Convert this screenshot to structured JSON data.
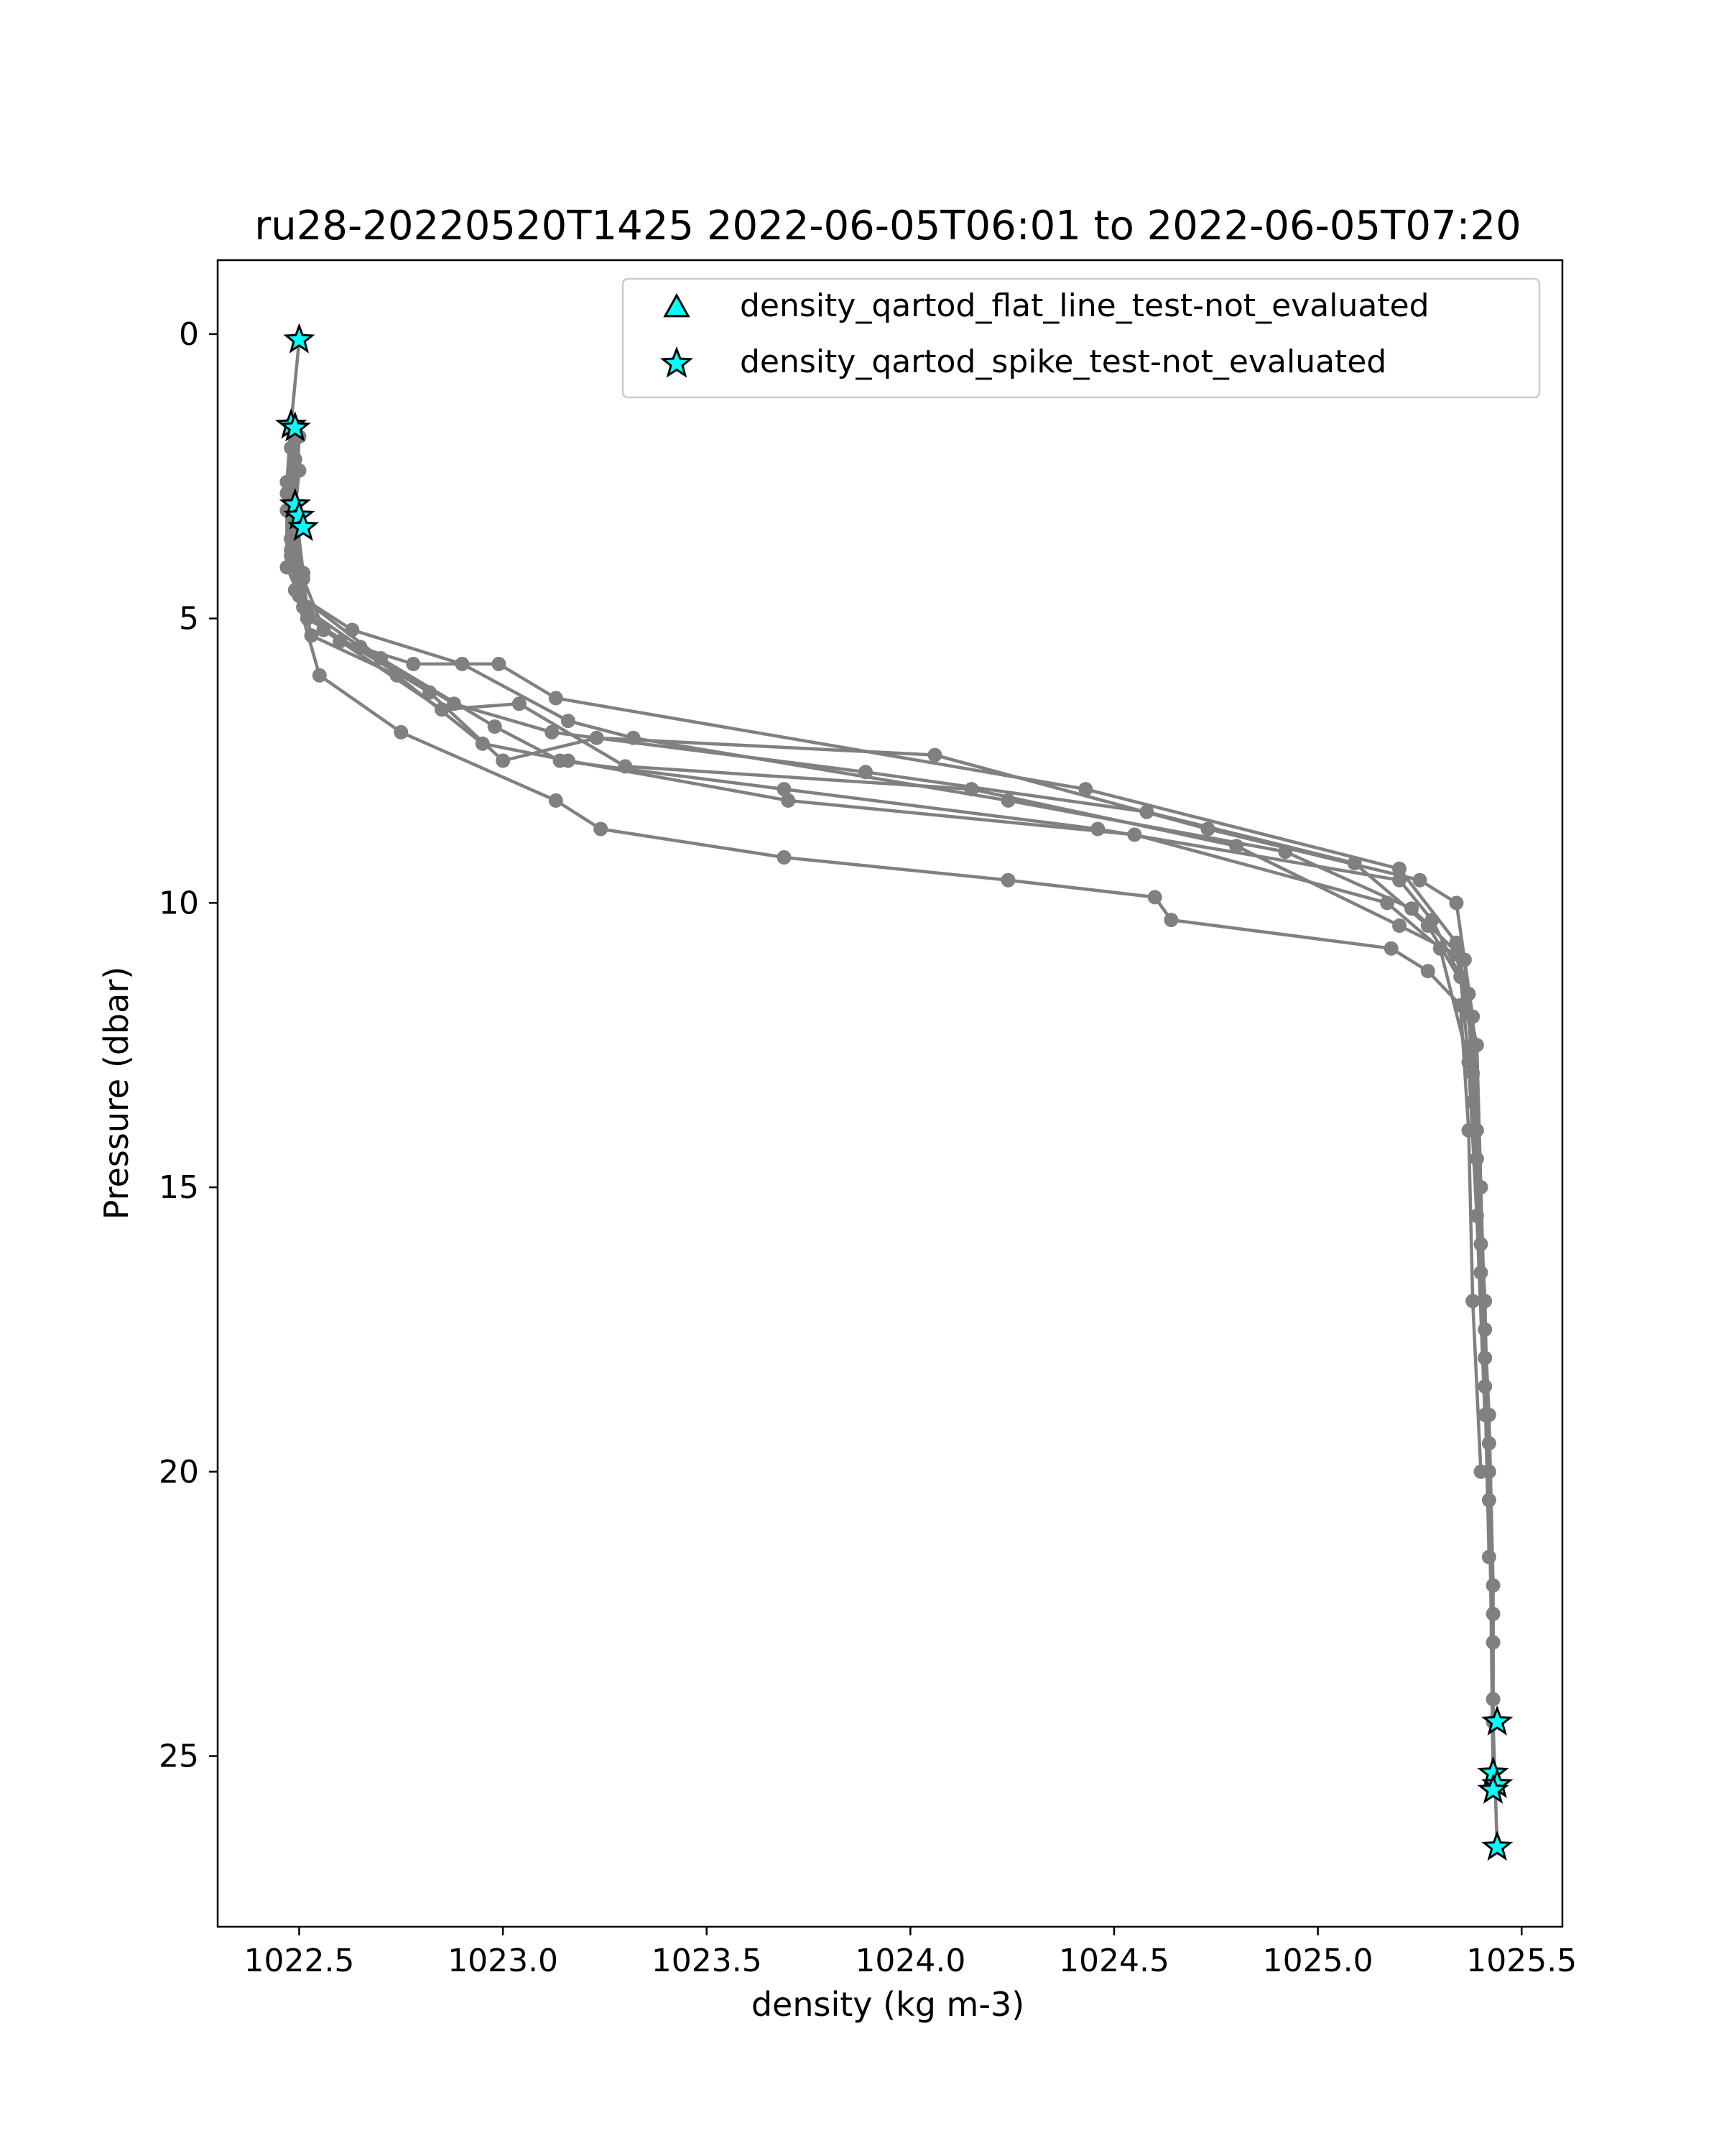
{
  "chart_data": {
    "type": "line",
    "title": "ru28-20220520T1425 2022-06-05T06:01 to 2022-06-05T07:20",
    "xlabel": "density (kg m-3)",
    "ylabel": "Pressure (dbar)",
    "xlim": [
      1022.3,
      1025.6
    ],
    "ylim": [
      28,
      -1.3
    ],
    "y_inverted": true,
    "grid": false,
    "legend_position": "top-right",
    "x_ticks": [
      1022.5,
      1023.0,
      1023.5,
      1024.0,
      1024.5,
      1025.0,
      1025.5
    ],
    "x_tick_labels": [
      "1022.5",
      "1023.0",
      "1023.5",
      "1024.0",
      "1024.5",
      "1025.0",
      "1025.5"
    ],
    "y_ticks": [
      0,
      5,
      10,
      15,
      20,
      25
    ],
    "y_tick_labels": [
      "0",
      "5",
      "10",
      "15",
      "20",
      "25"
    ],
    "line_color": "#808080",
    "marker_color": "#808080",
    "series": [
      {
        "x": [
          1022.5,
          1022.48,
          1022.49,
          1022.51,
          1022.52,
          1022.6,
          1022.78,
          1022.99,
          1023.13,
          1024.43,
          1025.2,
          1025.34,
          1025.39,
          1025.4,
          1025.41,
          1025.42,
          1025.43,
          1025.43,
          1025.44
        ],
        "y": [
          0.1,
          1.6,
          3.0,
          4.2,
          4.9,
          5.4,
          5.8,
          5.8,
          6.4,
          8.0,
          9.4,
          10.7,
          12.5,
          15.0,
          17.5,
          20.0,
          22.5,
          24.4,
          26.6
        ]
      },
      {
        "x": [
          1022.48,
          1022.47,
          1022.48,
          1022.5,
          1022.63,
          1022.9,
          1023.16,
          1023.32,
          1024.24,
          1024.92,
          1025.23,
          1025.36,
          1025.38,
          1025.4,
          1025.42,
          1025.43,
          1025.43
        ],
        "y": [
          1.6,
          2.6,
          3.6,
          4.6,
          5.2,
          5.8,
          6.8,
          7.1,
          8.2,
          9.1,
          10.1,
          11.0,
          13.0,
          16.0,
          19.0,
          22.0,
          25.3
        ]
      },
      {
        "x": [
          1022.49,
          1022.47,
          1022.48,
          1022.51,
          1022.65,
          1022.88,
          1023.12,
          1023.89,
          1024.58,
          1025.09,
          1025.27,
          1025.37,
          1025.39,
          1025.41,
          1025.42,
          1025.43
        ],
        "y": [
          1.7,
          2.8,
          3.9,
          4.8,
          5.5,
          6.5,
          7.0,
          7.7,
          8.4,
          9.3,
          10.4,
          11.6,
          14.0,
          17.0,
          20.5,
          24.0
        ]
      },
      {
        "x": [
          1022.48,
          1022.47,
          1022.47,
          1022.5,
          1022.7,
          1022.98,
          1023.14,
          1023.69,
          1024.46,
          1025.2,
          1025.28,
          1025.35,
          1025.38,
          1025.4,
          1025.42,
          1025.43
        ],
        "y": [
          1.6,
          3.1,
          4.1,
          4.6,
          5.7,
          6.9,
          7.5,
          8.0,
          8.7,
          9.6,
          10.3,
          11.3,
          13.5,
          16.5,
          19.5,
          25.5
        ]
      },
      {
        "x": [
          1022.5,
          1022.49,
          1022.49,
          1022.52,
          1022.82,
          1023.0,
          1023.23,
          1024.06,
          1024.73,
          1025.25,
          1025.34,
          1025.38,
          1025.4,
          1025.41,
          1025.43
        ],
        "y": [
          1.8,
          3.2,
          4.0,
          5.0,
          6.3,
          7.5,
          7.1,
          7.4,
          8.7,
          9.6,
          10.0,
          12.0,
          15.0,
          18.0,
          23.0
        ]
      },
      {
        "x": [
          1022.48,
          1022.49,
          1022.51,
          1022.56,
          1022.85,
          1023.04,
          1023.3,
          1024.15,
          1024.8,
          1025.2,
          1025.34,
          1025.38,
          1025.39,
          1025.41,
          1025.42
        ],
        "y": [
          2.0,
          3.4,
          4.3,
          5.2,
          6.6,
          6.5,
          7.6,
          8.0,
          9.0,
          10.4,
          10.9,
          12.5,
          14.5,
          18.5,
          21.5
        ]
      },
      {
        "x": [
          1022.49,
          1022.48,
          1022.5,
          1022.53,
          1022.74,
          1022.95,
          1023.16,
          1023.7,
          1024.55,
          1025.17,
          1025.3,
          1025.37,
          1025.39,
          1025.41
        ],
        "y": [
          2.2,
          3.6,
          4.4,
          5.3,
          6.0,
          7.2,
          7.5,
          8.2,
          8.8,
          10.0,
          10.8,
          12.8,
          15.5,
          19.0
        ]
      },
      {
        "x": [
          1022.5,
          1022.48,
          1022.49,
          1022.55,
          1022.75,
          1023.13,
          1023.24,
          1023.69,
          1024.24,
          1024.6,
          1024.64,
          1025.18,
          1025.27,
          1025.35,
          1025.37,
          1025.38,
          1025.4
        ],
        "y": [
          2.4,
          3.8,
          4.5,
          6.0,
          7.0,
          8.2,
          8.7,
          9.2,
          9.6,
          9.9,
          10.3,
          10.8,
          11.2,
          11.8,
          14.0,
          17.0,
          20.0
        ]
      }
    ],
    "legend": [
      {
        "label": "density_qartod_flat_line_test-not_evaluated",
        "marker": "triangle",
        "color": "#00ffff",
        "points": []
      },
      {
        "label": "density_qartod_spike_test-not_evaluated",
        "marker": "star",
        "color": "#00ffff",
        "points": [
          {
            "x": 1022.5,
            "y": 0.1
          },
          {
            "x": 1022.48,
            "y": 1.6
          },
          {
            "x": 1022.49,
            "y": 1.65
          },
          {
            "x": 1022.49,
            "y": 3.0
          },
          {
            "x": 1022.5,
            "y": 3.2
          },
          {
            "x": 1022.51,
            "y": 3.4
          },
          {
            "x": 1025.44,
            "y": 24.4
          },
          {
            "x": 1025.43,
            "y": 25.3
          },
          {
            "x": 1025.44,
            "y": 25.5
          },
          {
            "x": 1025.43,
            "y": 25.6
          },
          {
            "x": 1025.44,
            "y": 26.6
          }
        ]
      }
    ]
  }
}
